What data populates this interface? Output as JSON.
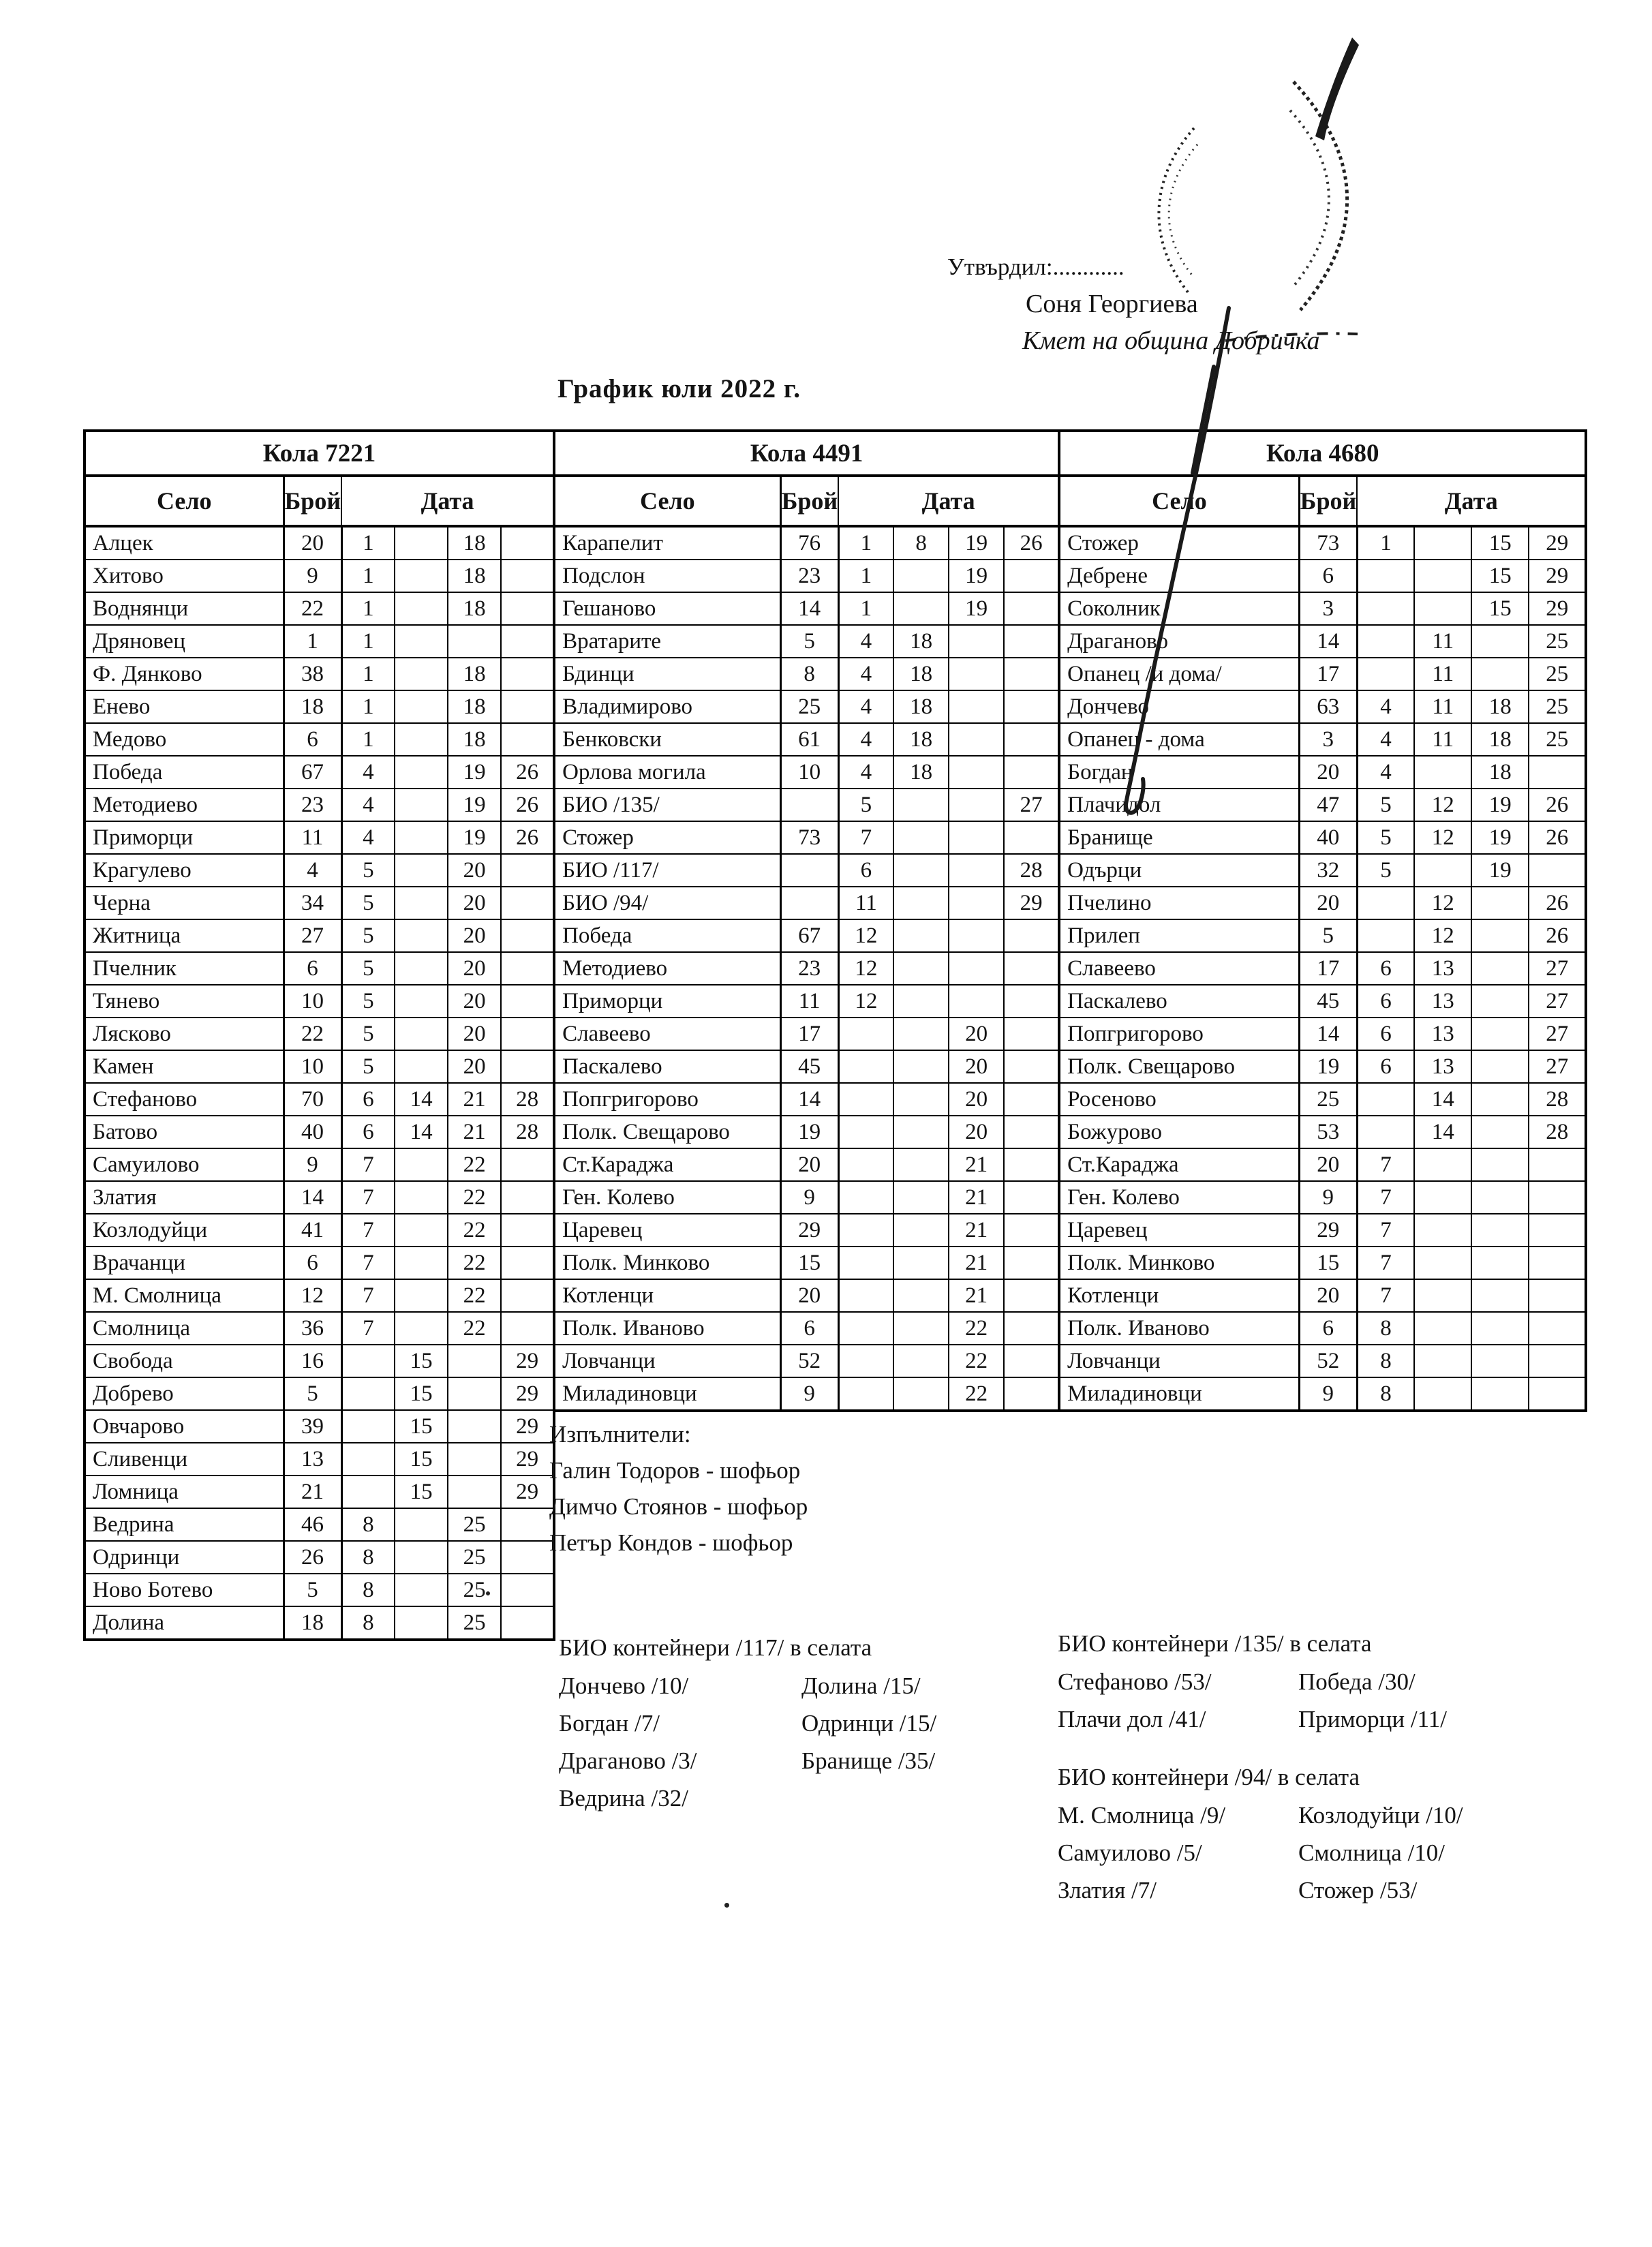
{
  "header": {
    "approve_label": "Утвърдил:............",
    "approver_name": "Соня Георгиева",
    "approver_title": "Кмет  на община Добричка"
  },
  "title": "График юли 2022 г.",
  "marks": {
    "stamp": "round-seal-stamp",
    "signature": "handwritten-pen-signature"
  },
  "colors": {
    "ink": "#141414",
    "paper": "#ffffff"
  },
  "tables": [
    {
      "car": "Кола 7221",
      "col_village": "Село",
      "col_count": "Брой",
      "col_date": "Дата",
      "rows": [
        {
          "village": "Алцек",
          "count": "20",
          "dates": [
            "1",
            "",
            "18",
            ""
          ]
        },
        {
          "village": "Хитово",
          "count": "9",
          "dates": [
            "1",
            "",
            "18",
            ""
          ]
        },
        {
          "village": "Воднянци",
          "count": "22",
          "dates": [
            "1",
            "",
            "18",
            ""
          ]
        },
        {
          "village": "Дряновец",
          "count": "1",
          "dates": [
            "1",
            "",
            "",
            ""
          ]
        },
        {
          "village": "Ф. Дянково",
          "count": "38",
          "dates": [
            "1",
            "",
            "18",
            ""
          ]
        },
        {
          "village": "Енево",
          "count": "18",
          "dates": [
            "1",
            "",
            "18",
            ""
          ]
        },
        {
          "village": "Медово",
          "count": "6",
          "dates": [
            "1",
            "",
            "18",
            ""
          ]
        },
        {
          "village": "Победа",
          "count": "67",
          "dates": [
            "4",
            "",
            "19",
            "26"
          ]
        },
        {
          "village": "Методиево",
          "count": "23",
          "dates": [
            "4",
            "",
            "19",
            "26"
          ]
        },
        {
          "village": "Приморци",
          "count": "11",
          "dates": [
            "4",
            "",
            "19",
            "26"
          ]
        },
        {
          "village": "Крагулево",
          "count": "4",
          "dates": [
            "5",
            "",
            "20",
            ""
          ]
        },
        {
          "village": "Черна",
          "count": "34",
          "dates": [
            "5",
            "",
            "20",
            ""
          ]
        },
        {
          "village": "Житница",
          "count": "27",
          "dates": [
            "5",
            "",
            "20",
            ""
          ]
        },
        {
          "village": "Пчелник",
          "count": "6",
          "dates": [
            "5",
            "",
            "20",
            ""
          ]
        },
        {
          "village": "Тянево",
          "count": "10",
          "dates": [
            "5",
            "",
            "20",
            ""
          ]
        },
        {
          "village": "Лясково",
          "count": "22",
          "dates": [
            "5",
            "",
            "20",
            ""
          ]
        },
        {
          "village": "Камен",
          "count": "10",
          "dates": [
            "5",
            "",
            "20",
            ""
          ]
        },
        {
          "village": "Стефаново",
          "count": "70",
          "dates": [
            "6",
            "14",
            "21",
            "28"
          ]
        },
        {
          "village": "Батово",
          "count": "40",
          "dates": [
            "6",
            "14",
            "21",
            "28"
          ]
        },
        {
          "village": "Самуилово",
          "count": "9",
          "dates": [
            "7",
            "",
            "22",
            ""
          ]
        },
        {
          "village": "Златия",
          "count": "14",
          "dates": [
            "7",
            "",
            "22",
            ""
          ]
        },
        {
          "village": "Козлодуйци",
          "count": "41",
          "dates": [
            "7",
            "",
            "22",
            ""
          ]
        },
        {
          "village": "Врачанци",
          "count": "6",
          "dates": [
            "7",
            "",
            "22",
            ""
          ]
        },
        {
          "village": "М. Смолница",
          "count": "12",
          "dates": [
            "7",
            "",
            "22",
            ""
          ]
        },
        {
          "village": "Смолница",
          "count": "36",
          "dates": [
            "7",
            "",
            "22",
            ""
          ]
        },
        {
          "village": "Свобода",
          "count": "16",
          "dates": [
            "",
            "15",
            "",
            "29"
          ]
        },
        {
          "village": "Добрево",
          "count": "5",
          "dates": [
            "",
            "15",
            "",
            "29"
          ]
        },
        {
          "village": "Овчарово",
          "count": "39",
          "dates": [
            "",
            "15",
            "",
            "29"
          ]
        },
        {
          "village": "Сливенци",
          "count": "13",
          "dates": [
            "",
            "15",
            "",
            "29"
          ]
        },
        {
          "village": "Ломница",
          "count": "21",
          "dates": [
            "",
            "15",
            "",
            "29"
          ]
        },
        {
          "village": "Ведрина",
          "count": "46",
          "dates": [
            "8",
            "",
            "25",
            ""
          ]
        },
        {
          "village": "Одринци",
          "count": "26",
          "dates": [
            "8",
            "",
            "25",
            ""
          ]
        },
        {
          "village": "Ново Ботево",
          "count": "5",
          "dates": [
            "8",
            "",
            "25",
            ""
          ]
        },
        {
          "village": "Долина",
          "count": "18",
          "dates": [
            "8",
            "",
            "25",
            ""
          ]
        }
      ]
    },
    {
      "car": "Кола 4491",
      "col_village": "Село",
      "col_count": "Брой",
      "col_date": "Дата",
      "rows": [
        {
          "village": "Карапелит",
          "count": "76",
          "dates": [
            "1",
            "8",
            "19",
            "26"
          ]
        },
        {
          "village": "Подслон",
          "count": "23",
          "dates": [
            "1",
            "",
            "19",
            ""
          ]
        },
        {
          "village": "Гешаново",
          "count": "14",
          "dates": [
            "1",
            "",
            "19",
            ""
          ]
        },
        {
          "village": "Вратарите",
          "count": "5",
          "dates": [
            "4",
            "18",
            "",
            ""
          ]
        },
        {
          "village": "Бдинци",
          "count": "8",
          "dates": [
            "4",
            "18",
            "",
            ""
          ]
        },
        {
          "village": "Владимирово",
          "count": "25",
          "dates": [
            "4",
            "18",
            "",
            ""
          ]
        },
        {
          "village": "Бенковски",
          "count": "61",
          "dates": [
            "4",
            "18",
            "",
            ""
          ]
        },
        {
          "village": "Орлова могила",
          "count": "10",
          "dates": [
            "4",
            "18",
            "",
            ""
          ]
        },
        {
          "village": "БИО /135/",
          "count": "",
          "dates": [
            "5",
            "",
            "",
            "27"
          ]
        },
        {
          "village": "Стожер",
          "count": "73",
          "dates": [
            "7",
            "",
            "",
            ""
          ]
        },
        {
          "village": "БИО /117/",
          "count": "",
          "dates": [
            "6",
            "",
            "",
            "28"
          ]
        },
        {
          "village": "БИО /94/",
          "count": "",
          "dates": [
            "11",
            "",
            "",
            "29"
          ]
        },
        {
          "village": "Победа",
          "count": "67",
          "dates": [
            "12",
            "",
            "",
            ""
          ]
        },
        {
          "village": "Методиево",
          "count": "23",
          "dates": [
            "12",
            "",
            "",
            ""
          ]
        },
        {
          "village": "Приморци",
          "count": "11",
          "dates": [
            "12",
            "",
            "",
            ""
          ]
        },
        {
          "village": "Славеево",
          "count": "17",
          "dates": [
            "",
            "",
            "20",
            ""
          ]
        },
        {
          "village": "Паскалево",
          "count": "45",
          "dates": [
            "",
            "",
            "20",
            ""
          ]
        },
        {
          "village": "Попгригорово",
          "count": "14",
          "dates": [
            "",
            "",
            "20",
            ""
          ]
        },
        {
          "village": "Полк. Свещарово",
          "count": "19",
          "dates": [
            "",
            "",
            "20",
            ""
          ]
        },
        {
          "village": "Ст.Караджа",
          "count": "20",
          "dates": [
            "",
            "",
            "21",
            ""
          ]
        },
        {
          "village": "Ген. Колево",
          "count": "9",
          "dates": [
            "",
            "",
            "21",
            ""
          ]
        },
        {
          "village": "Царевец",
          "count": "29",
          "dates": [
            "",
            "",
            "21",
            ""
          ]
        },
        {
          "village": "Полк. Минково",
          "count": "15",
          "dates": [
            "",
            "",
            "21",
            ""
          ]
        },
        {
          "village": "Котленци",
          "count": "20",
          "dates": [
            "",
            "",
            "21",
            ""
          ]
        },
        {
          "village": "Полк. Иваново",
          "count": "6",
          "dates": [
            "",
            "",
            "22",
            ""
          ]
        },
        {
          "village": "Ловчанци",
          "count": "52",
          "dates": [
            "",
            "",
            "22",
            ""
          ]
        },
        {
          "village": "Миладиновци",
          "count": "9",
          "dates": [
            "",
            "",
            "22",
            ""
          ]
        }
      ]
    },
    {
      "car": "Кола 4680",
      "col_village": "Село",
      "col_count": "Брой",
      "col_date": "Дата",
      "rows": [
        {
          "village": "Стожер",
          "count": "73",
          "dates": [
            "1",
            "",
            "15",
            "29"
          ]
        },
        {
          "village": "Дебрене",
          "count": "6",
          "dates": [
            "",
            "",
            "15",
            "29"
          ]
        },
        {
          "village": "Соколник",
          "count": "3",
          "dates": [
            "",
            "",
            "15",
            "29"
          ]
        },
        {
          "village": "Драганово",
          "count": "14",
          "dates": [
            "",
            "11",
            "",
            "25"
          ]
        },
        {
          "village": "Опанец /и дома/",
          "count": "17",
          "dates": [
            "",
            "11",
            "",
            "25"
          ]
        },
        {
          "village": "Дончево",
          "count": "63",
          "dates": [
            "4",
            "11",
            "18",
            "25"
          ]
        },
        {
          "village": "Опанец - дома",
          "count": "3",
          "dates": [
            "4",
            "11",
            "18",
            "25"
          ]
        },
        {
          "village": "Богдан",
          "count": "20",
          "dates": [
            "4",
            "",
            "18",
            ""
          ]
        },
        {
          "village": "Плачидол",
          "count": "47",
          "dates": [
            "5",
            "12",
            "19",
            "26"
          ]
        },
        {
          "village": "Бранище",
          "count": "40",
          "dates": [
            "5",
            "12",
            "19",
            "26"
          ]
        },
        {
          "village": "Одърци",
          "count": "32",
          "dates": [
            "5",
            "",
            "19",
            ""
          ]
        },
        {
          "village": "Пчелино",
          "count": "20",
          "dates": [
            "",
            "12",
            "",
            "26"
          ]
        },
        {
          "village": "Прилеп",
          "count": "5",
          "dates": [
            "",
            "12",
            "",
            "26"
          ]
        },
        {
          "village": "Славеево",
          "count": "17",
          "dates": [
            "6",
            "13",
            "",
            "27"
          ]
        },
        {
          "village": "Паскалево",
          "count": "45",
          "dates": [
            "6",
            "13",
            "",
            "27"
          ]
        },
        {
          "village": "Попгригорово",
          "count": "14",
          "dates": [
            "6",
            "13",
            "",
            "27"
          ]
        },
        {
          "village": "Полк. Свещарово",
          "count": "19",
          "dates": [
            "6",
            "13",
            "",
            "27"
          ]
        },
        {
          "village": "Росеново",
          "count": "25",
          "dates": [
            "",
            "14",
            "",
            "28"
          ]
        },
        {
          "village": "Божурово",
          "count": "53",
          "dates": [
            "",
            "14",
            "",
            "28"
          ]
        },
        {
          "village": "Ст.Караджа",
          "count": "20",
          "dates": [
            "7",
            "",
            "",
            ""
          ]
        },
        {
          "village": "Ген. Колево",
          "count": "9",
          "dates": [
            "7",
            "",
            "",
            ""
          ]
        },
        {
          "village": "Царевец",
          "count": "29",
          "dates": [
            "7",
            "",
            "",
            ""
          ]
        },
        {
          "village": "Полк. Минково",
          "count": "15",
          "dates": [
            "7",
            "",
            "",
            ""
          ]
        },
        {
          "village": "Котленци",
          "count": "20",
          "dates": [
            "7",
            "",
            "",
            ""
          ]
        },
        {
          "village": "Полк. Иваново",
          "count": "6",
          "dates": [
            "8",
            "",
            "",
            ""
          ]
        },
        {
          "village": "Ловчанци",
          "count": "52",
          "dates": [
            "8",
            "",
            "",
            ""
          ]
        },
        {
          "village": "Миладиновци",
          "count": "9",
          "dates": [
            "8",
            "",
            "",
            ""
          ]
        }
      ]
    }
  ],
  "executors": {
    "heading": "Изпълнители:",
    "items": [
      "Галин Тодоров - шофьор",
      "Димчо Стоянов - шофьор",
      "Петър Кондов - шофьор"
    ]
  },
  "bio_sections": [
    {
      "heading": "БИО контейнери /117/ в селата",
      "left": [
        "Дончево /10/",
        "Богдан /7/",
        "Драганово /3/",
        "Ведрина /32/"
      ],
      "right": [
        "Долина /15/",
        "Одринци /15/",
        "Бранище /35/"
      ]
    },
    {
      "heading": "БИО контейнери /135/ в селата",
      "left": [
        "Стефаново /53/",
        "Плачи дол /41/"
      ],
      "right": [
        "Победа /30/",
        "Приморци /11/"
      ]
    },
    {
      "heading": "БИО контейнери /94/ в селата",
      "left": [
        "М. Смолница /9/",
        "Самуилово /5/",
        "Златия /7/"
      ],
      "right": [
        "Козлодуйци /10/",
        "Смолница /10/",
        "Стожер /53/"
      ]
    }
  ]
}
